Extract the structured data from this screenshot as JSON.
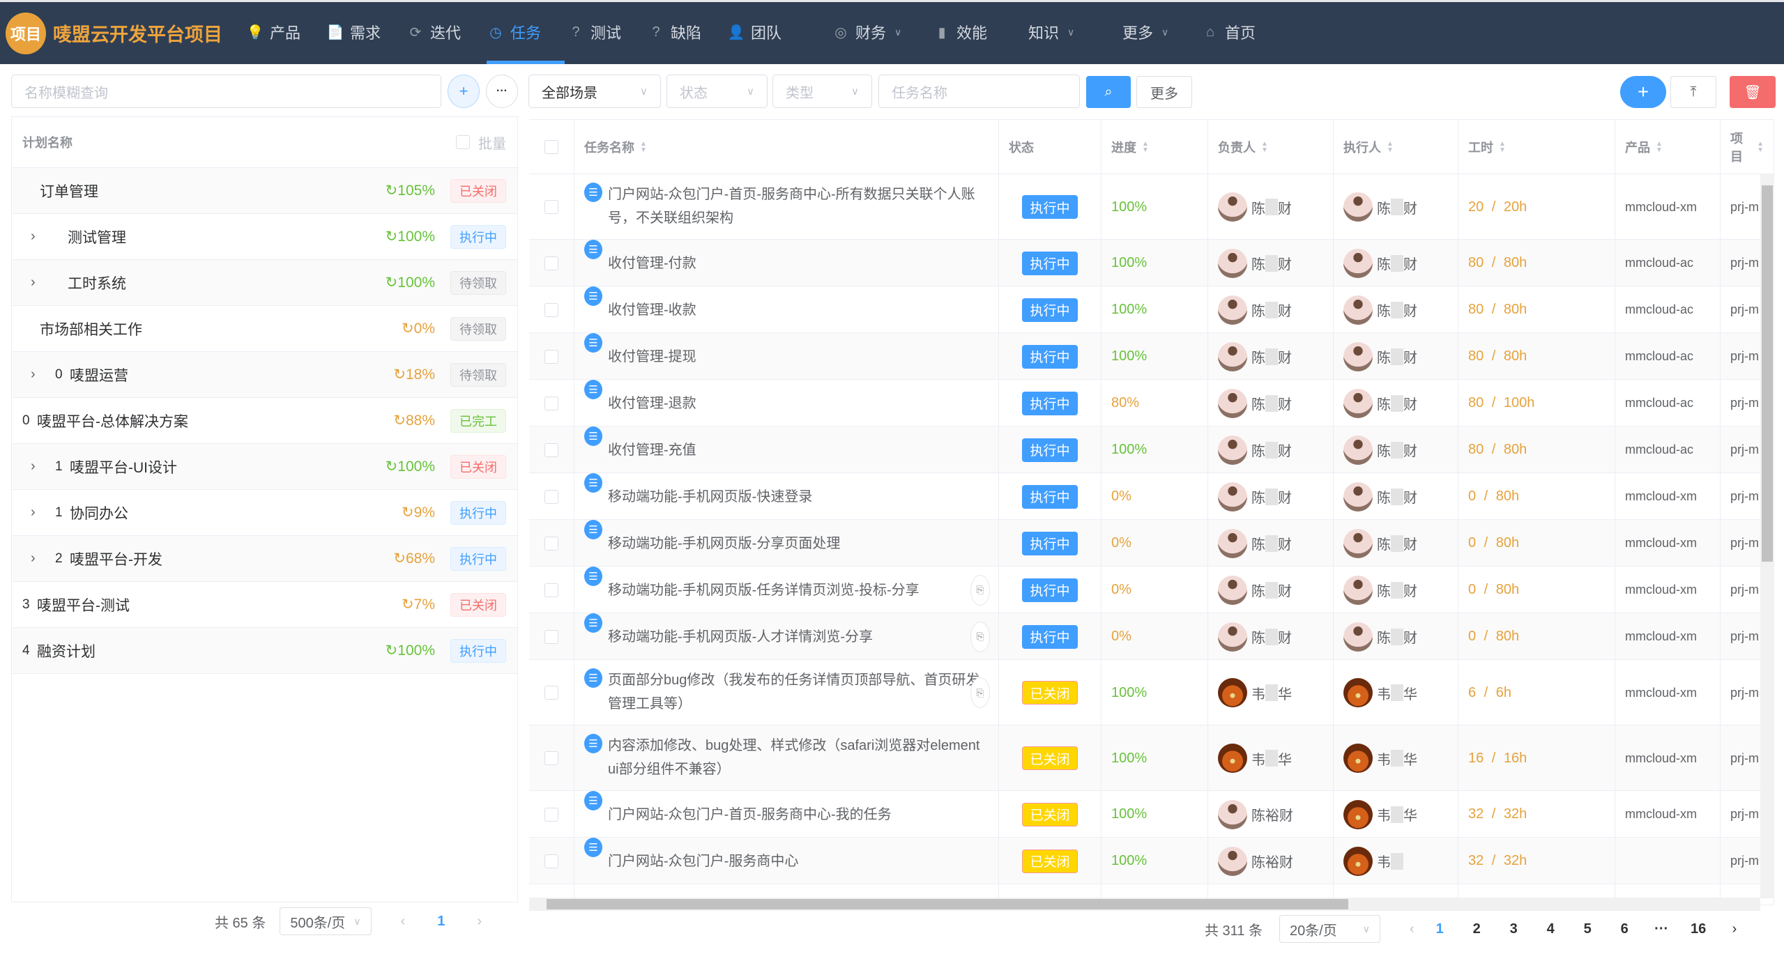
{
  "header": {
    "logo_text": "项目",
    "project_title": "唛盟云开发平台项目",
    "nav": [
      {
        "label": "产品",
        "icon": "lightbulb-icon",
        "glyph": "💡",
        "active": false,
        "dropdown": false
      },
      {
        "label": "需求",
        "icon": "document-icon",
        "glyph": "📄",
        "active": false,
        "dropdown": false
      },
      {
        "label": "迭代",
        "icon": "iteration-icon",
        "glyph": "⟳",
        "active": false,
        "dropdown": false
      },
      {
        "label": "任务",
        "icon": "clock-icon",
        "glyph": "◷",
        "active": true,
        "dropdown": false
      },
      {
        "label": "测试",
        "icon": "question-icon",
        "glyph": "?",
        "active": false,
        "dropdown": false
      },
      {
        "label": "缺陷",
        "icon": "question-icon",
        "glyph": "?",
        "active": false,
        "dropdown": false
      },
      {
        "label": "团队",
        "icon": "user-icon",
        "glyph": "👤",
        "active": false,
        "dropdown": false
      },
      {
        "label": "财务",
        "icon": "coins-icon",
        "glyph": "◎",
        "active": false,
        "dropdown": true
      },
      {
        "label": "效能",
        "icon": "bar-chart-icon",
        "glyph": "▮",
        "active": false,
        "dropdown": false
      },
      {
        "label": "知识",
        "icon": "",
        "glyph": "",
        "active": false,
        "dropdown": true
      },
      {
        "label": "更多",
        "icon": "",
        "glyph": "",
        "active": false,
        "dropdown": true
      },
      {
        "label": "首页",
        "icon": "home-icon",
        "glyph": "⌂",
        "active": false,
        "dropdown": false
      }
    ]
  },
  "toolbar": {
    "plan_search_placeholder": "名称模糊查询",
    "scene_select": "全部场景",
    "status_placeholder": "状态",
    "type_placeholder": "类型",
    "task_name_placeholder": "任务名称",
    "more_label": "更多"
  },
  "plans": {
    "header": "计划名称",
    "batch_label": "批量",
    "rows": [
      {
        "num": "",
        "name": "订单管理",
        "expandable": false,
        "pct": "105%",
        "pct_color": "#67c23a",
        "status": "已关闭",
        "kind": "closed"
      },
      {
        "num": "",
        "name": "测试管理",
        "expandable": true,
        "pct": "100%",
        "pct_color": "#67c23a",
        "status": "执行中",
        "kind": "running"
      },
      {
        "num": "",
        "name": "工时系统",
        "expandable": true,
        "pct": "100%",
        "pct_color": "#67c23a",
        "status": "待领取",
        "kind": "pending"
      },
      {
        "num": "",
        "name": "市场部相关工作",
        "expandable": false,
        "pct": "0%",
        "pct_color": "#e6a23c",
        "status": "待领取",
        "kind": "pending"
      },
      {
        "num": "0",
        "name": "唛盟运营",
        "expandable": true,
        "pct": "18%",
        "pct_color": "#e6a23c",
        "status": "待领取",
        "kind": "pending"
      },
      {
        "num": "0",
        "name": "唛盟平台-总体解决方案",
        "expandable": false,
        "pct": "88%",
        "pct_color": "#e6a23c",
        "status": "已完工",
        "kind": "done"
      },
      {
        "num": "1",
        "name": "唛盟平台-UI设计",
        "expandable": true,
        "pct": "100%",
        "pct_color": "#67c23a",
        "status": "已关闭",
        "kind": "closed"
      },
      {
        "num": "1",
        "name": "协同办公",
        "expandable": true,
        "pct": "9%",
        "pct_color": "#e6a23c",
        "status": "执行中",
        "kind": "running"
      },
      {
        "num": "2",
        "name": "唛盟平台-开发",
        "expandable": true,
        "pct": "68%",
        "pct_color": "#e6a23c",
        "status": "执行中",
        "kind": "running"
      },
      {
        "num": "3",
        "name": "唛盟平台-测试",
        "expandable": false,
        "pct": "7%",
        "pct_color": "#e6a23c",
        "status": "已关闭",
        "kind": "closed"
      },
      {
        "num": "4",
        "name": "融资计划",
        "expandable": false,
        "pct": "100%",
        "pct_color": "#67c23a",
        "status": "执行中",
        "kind": "running"
      }
    ],
    "pagination": {
      "total": "共 65 条",
      "page_size": "500条/页",
      "current": "1"
    }
  },
  "tasks": {
    "columns": [
      "任务名称",
      "状态",
      "进度",
      "负责人",
      "执行人",
      "工时",
      "产品",
      "项目"
    ],
    "rows": [
      {
        "name": "门户网站-众包门户-首页-服务商中心-所有数据只关联个人账号，不关联组织架构",
        "status": "执行中",
        "progress": "100%",
        "owner": {
          "first": "陈",
          "last": "财",
          "avatar": "person"
        },
        "executor": {
          "first": "陈",
          "last": "财",
          "avatar": "person"
        },
        "hours": "20 / 20h",
        "product": "mmcloud-xm",
        "project": "prj-m",
        "tall": true,
        "copy": false
      },
      {
        "name": "收付管理-付款",
        "status": "执行中",
        "progress": "100%",
        "owner": {
          "first": "陈",
          "last": "财",
          "avatar": "person"
        },
        "executor": {
          "first": "陈",
          "last": "财",
          "avatar": "person"
        },
        "hours": "80 / 80h",
        "product": "mmcloud-ac",
        "project": "prj-m",
        "tall": false,
        "copy": false
      },
      {
        "name": "收付管理-收款",
        "status": "执行中",
        "progress": "100%",
        "owner": {
          "first": "陈",
          "last": "财",
          "avatar": "person"
        },
        "executor": {
          "first": "陈",
          "last": "财",
          "avatar": "person"
        },
        "hours": "80 / 80h",
        "product": "mmcloud-ac",
        "project": "prj-m",
        "tall": false,
        "copy": false
      },
      {
        "name": "收付管理-提现",
        "status": "执行中",
        "progress": "100%",
        "owner": {
          "first": "陈",
          "last": "财",
          "avatar": "person"
        },
        "executor": {
          "first": "陈",
          "last": "财",
          "avatar": "person"
        },
        "hours": "80 / 80h",
        "product": "mmcloud-ac",
        "project": "prj-m",
        "tall": false,
        "copy": false
      },
      {
        "name": "收付管理-退款",
        "status": "执行中",
        "progress": "80%",
        "owner": {
          "first": "陈",
          "last": "财",
          "avatar": "person"
        },
        "executor": {
          "first": "陈",
          "last": "财",
          "avatar": "person"
        },
        "hours": "80 / 100h",
        "product": "mmcloud-ac",
        "project": "prj-m",
        "tall": false,
        "copy": false
      },
      {
        "name": "收付管理-充值",
        "status": "执行中",
        "progress": "100%",
        "owner": {
          "first": "陈",
          "last": "财",
          "avatar": "person"
        },
        "executor": {
          "first": "陈",
          "last": "财",
          "avatar": "person"
        },
        "hours": "80 / 80h",
        "product": "mmcloud-ac",
        "project": "prj-m",
        "tall": false,
        "copy": false
      },
      {
        "name": "移动端功能-手机网页版-快速登录",
        "status": "执行中",
        "progress": "0%",
        "owner": {
          "first": "陈",
          "last": "财",
          "avatar": "person"
        },
        "executor": {
          "first": "陈",
          "last": "财",
          "avatar": "person"
        },
        "hours": "0 / 80h",
        "product": "mmcloud-xm",
        "project": "prj-m",
        "tall": false,
        "copy": false
      },
      {
        "name": "移动端功能-手机网页版-分享页面处理",
        "status": "执行中",
        "progress": "0%",
        "owner": {
          "first": "陈",
          "last": "财",
          "avatar": "person"
        },
        "executor": {
          "first": "陈",
          "last": "财",
          "avatar": "person"
        },
        "hours": "0 / 80h",
        "product": "mmcloud-xm",
        "project": "prj-m",
        "tall": false,
        "copy": false
      },
      {
        "name": "移动端功能-手机网页版-任务详情页浏览-投标-分享",
        "status": "执行中",
        "progress": "0%",
        "owner": {
          "first": "陈",
          "last": "财",
          "avatar": "person"
        },
        "executor": {
          "first": "陈",
          "last": "财",
          "avatar": "person"
        },
        "hours": "0 / 80h",
        "product": "mmcloud-xm",
        "project": "prj-m",
        "tall": false,
        "copy": true
      },
      {
        "name": "移动端功能-手机网页版-人才详情浏览-分享",
        "status": "执行中",
        "progress": "0%",
        "owner": {
          "first": "陈",
          "last": "财",
          "avatar": "person"
        },
        "executor": {
          "first": "陈",
          "last": "财",
          "avatar": "person"
        },
        "hours": "0 / 80h",
        "product": "mmcloud-xm",
        "project": "prj-m",
        "tall": false,
        "copy": true
      },
      {
        "name": "页面部分bug修改（我发布的任务详情页顶部导航、首页研发管理工具等）",
        "status": "已关闭",
        "progress": "100%",
        "owner": {
          "first": "韦",
          "last": "华",
          "avatar": "orange"
        },
        "executor": {
          "first": "韦",
          "last": "华",
          "avatar": "orange"
        },
        "hours": "6 / 6h",
        "product": "mmcloud-xm",
        "project": "prj-m",
        "tall": true,
        "copy": true
      },
      {
        "name": "内容添加修改、bug处理、样式修改（safari浏览器对element ui部分组件不兼容）",
        "status": "已关闭",
        "progress": "100%",
        "owner": {
          "first": "韦",
          "last": "华",
          "avatar": "orange"
        },
        "executor": {
          "first": "韦",
          "last": "华",
          "avatar": "orange"
        },
        "hours": "16 / 16h",
        "product": "mmcloud-xm",
        "project": "prj-m",
        "tall": true,
        "copy": false
      },
      {
        "name": "门户网站-众包门户-首页-服务商中心-我的任务",
        "status": "已关闭",
        "progress": "100%",
        "owner": {
          "full": "陈裕财",
          "avatar": "person"
        },
        "executor": {
          "first": "韦",
          "last": "华",
          "avatar": "orange"
        },
        "hours": "32 / 32h",
        "product": "mmcloud-xm",
        "project": "prj-m",
        "tall": false,
        "copy": false
      },
      {
        "name": "门户网站-众包门户-服务商中心",
        "status": "已关闭",
        "progress": "100%",
        "owner": {
          "full": "陈裕财",
          "avatar": "person"
        },
        "executor": {
          "first": "韦",
          "last": "",
          "avatar": "orange"
        },
        "hours": "32 / 32h",
        "product": "",
        "project": "prj-m",
        "tall": false,
        "copy": false
      }
    ],
    "pagination": {
      "total": "共 311 条",
      "page_size": "20条/页",
      "pages": [
        "1",
        "2",
        "3",
        "4",
        "5",
        "6",
        "···",
        "16"
      ],
      "current": "1"
    }
  },
  "colors": {
    "header_bg": "#2f3e53",
    "accent": "#409eff",
    "danger": "#f56c6c",
    "success": "#67c23a",
    "warning": "#e6a23c",
    "closed_tag": "#ffd600"
  }
}
